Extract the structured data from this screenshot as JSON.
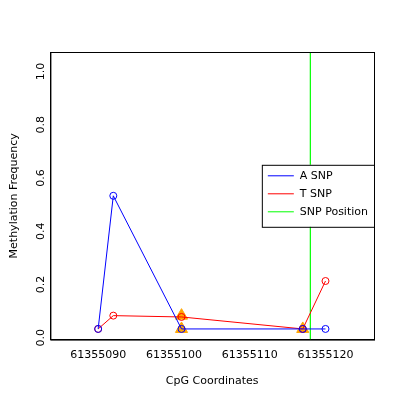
{
  "chart_data": {
    "type": "line",
    "x_label": "CpG Coordinates",
    "y_label": "Methylation Frequency",
    "xlim": [
      61355083.7,
      61355126.4
    ],
    "xticks": [
      61355090,
      61355100,
      61355110,
      61355120
    ],
    "ylim": [
      -0.04,
      1.04
    ],
    "yticks": [
      {
        "value": 0,
        "label": "0.0"
      },
      {
        "value": 0.2,
        "label": "0.2"
      },
      {
        "value": 0.4,
        "label": "0.4"
      },
      {
        "value": 0.6,
        "label": "0.6"
      },
      {
        "value": 0.8,
        "label": "0.8"
      },
      {
        "value": 1,
        "label": "1.0"
      }
    ],
    "grid": false,
    "legend": "right",
    "series": [
      {
        "name": "A SNP",
        "color": "#0000ff",
        "type": "line",
        "marker": "circle",
        "line_style": "solid",
        "x": [
          61355090,
          61355092,
          61355101,
          61355117,
          61355120
        ],
        "values": [
          0.0,
          0.5,
          0.0,
          0.0,
          0.0
        ]
      },
      {
        "name": "T SNP",
        "color": "#ff0000",
        "type": "line",
        "marker": "circle",
        "line_style": "solid",
        "x": [
          61355090,
          61355092,
          61355101,
          61355117,
          61355120
        ],
        "values": [
          0.0,
          0.05,
          0.045,
          0.0,
          0.18
        ]
      },
      {
        "name": "SNP Position",
        "color": "#00ff00",
        "type": "vline",
        "line_style": "solid",
        "x": [
          61355118
        ]
      },
      {
        "color": "#ffa500",
        "type": "scatter",
        "marker": "triangle",
        "x": [
          61355101,
          61355101,
          61355117
        ],
        "values": [
          0.05,
          0.0,
          0.0
        ]
      }
    ]
  }
}
